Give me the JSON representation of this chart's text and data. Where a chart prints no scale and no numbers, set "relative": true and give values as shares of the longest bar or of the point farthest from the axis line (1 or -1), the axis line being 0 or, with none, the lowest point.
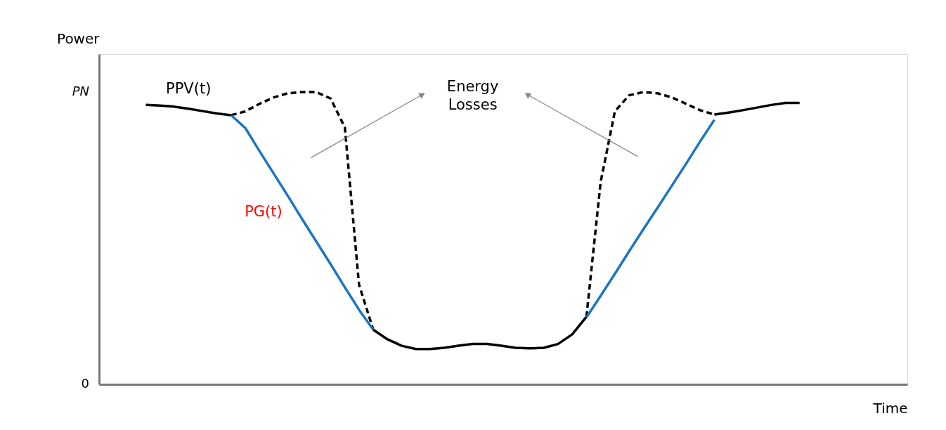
{
  "chart_data": {
    "type": "line",
    "categories": [
      null,
      null,
      null,
      null,
      null,
      null,
      null,
      null,
      null,
      null,
      null,
      null,
      null,
      null,
      null,
      null,
      null,
      null,
      null,
      null,
      null,
      null,
      null,
      null,
      null,
      null,
      null,
      null,
      null,
      null,
      null,
      null,
      null,
      null,
      null,
      null,
      null,
      null,
      null,
      null,
      null,
      null,
      null,
      null,
      null,
      null,
      null
    ],
    "series": [
      {
        "name": "PPV(t)",
        "color": "#000000",
        "line_style": "solid",
        "values": [
          0.956,
          0.954,
          0.95,
          0.943,
          0.935,
          0.927,
          0.921,
          null,
          null,
          null,
          null,
          null,
          null,
          null,
          null,
          null,
          null,
          null,
          null,
          null,
          null,
          null,
          null,
          null,
          null,
          null,
          null,
          null,
          null,
          null,
          null,
          null,
          null,
          null,
          null,
          null,
          null,
          null,
          null,
          null,
          null,
          null,
          null,
          null,
          null,
          null,
          null
        ]
      },
      {
        "color": "#000000",
        "line_style": "dashed",
        "values": [
          null,
          null,
          null,
          null,
          null,
          null,
          0.921,
          0.934,
          0.96,
          0.982,
          0.996,
          1.0,
          1.0,
          0.978,
          0.879,
          0.341,
          0.187,
          null,
          null,
          null,
          null,
          null,
          null,
          null,
          null,
          null,
          null,
          null,
          null,
          null,
          null,
          null,
          null,
          null,
          null,
          null,
          null,
          null,
          null,
          null,
          null,
          null,
          null,
          null,
          null,
          null,
          null
        ]
      },
      {
        "color": "#000000",
        "line_style": "solid",
        "values": [
          null,
          null,
          null,
          null,
          null,
          null,
          null,
          null,
          null,
          null,
          null,
          null,
          null,
          null,
          null,
          null,
          0.187,
          0.154,
          0.132,
          0.121,
          0.121,
          0.125,
          0.132,
          0.138,
          0.138,
          0.132,
          0.125,
          0.123,
          0.125,
          0.138,
          0.171,
          0.231,
          null,
          null,
          null,
          null,
          null,
          null,
          null,
          null,
          null,
          null,
          null,
          null,
          null,
          null,
          null
        ]
      },
      {
        "color": "#000000",
        "line_style": "dashed",
        "values": [
          null,
          null,
          null,
          null,
          null,
          null,
          null,
          null,
          null,
          null,
          null,
          null,
          null,
          null,
          null,
          null,
          null,
          null,
          null,
          null,
          null,
          null,
          null,
          null,
          null,
          null,
          null,
          null,
          null,
          null,
          null,
          0.231,
          0.692,
          0.934,
          0.989,
          1.0,
          0.996,
          0.982,
          0.96,
          0.938,
          0.923,
          null,
          null,
          null,
          null,
          null,
          null
        ]
      },
      {
        "color": "#000000",
        "line_style": "solid",
        "values": [
          null,
          null,
          null,
          null,
          null,
          null,
          null,
          null,
          null,
          null,
          null,
          null,
          null,
          null,
          null,
          null,
          null,
          null,
          null,
          null,
          null,
          null,
          null,
          null,
          null,
          null,
          null,
          null,
          null,
          null,
          null,
          null,
          null,
          null,
          null,
          null,
          null,
          null,
          null,
          null,
          0.923,
          0.93,
          0.938,
          0.947,
          0.956,
          0.963,
          0.963
        ]
      },
      {
        "name": "PG(t)",
        "color": "#1a75c9",
        "line_style": "solid",
        "values": [
          null,
          null,
          null,
          null,
          null,
          null,
          0.921,
          0.877,
          0.798,
          0.721,
          0.644,
          0.565,
          0.488,
          0.411,
          0.332,
          0.255,
          0.187,
          null,
          null,
          null,
          null,
          null,
          null,
          null,
          null,
          null,
          null,
          null,
          null,
          null,
          null,
          null,
          null,
          null,
          null,
          null,
          null,
          null,
          null,
          null,
          null,
          null,
          null,
          null,
          null,
          null,
          null
        ]
      },
      {
        "color": "#1a75c9",
        "line_style": "solid",
        "values": [
          null,
          null,
          null,
          null,
          null,
          null,
          null,
          null,
          null,
          null,
          null,
          null,
          null,
          null,
          null,
          null,
          null,
          null,
          null,
          null,
          null,
          null,
          null,
          null,
          null,
          null,
          null,
          null,
          null,
          null,
          null,
          0.229,
          0.303,
          0.378,
          0.455,
          0.53,
          0.604,
          0.679,
          0.754,
          0.831,
          0.905,
          null,
          null,
          null,
          null,
          null,
          null
        ]
      }
    ],
    "relative": true,
    "ylabel": "Power",
    "xlabel": "Time",
    "tick_labels": false,
    "annotations": [
      "Energy Losses",
      "PN",
      "0"
    ],
    "grid": false,
    "marker": "none"
  }
}
